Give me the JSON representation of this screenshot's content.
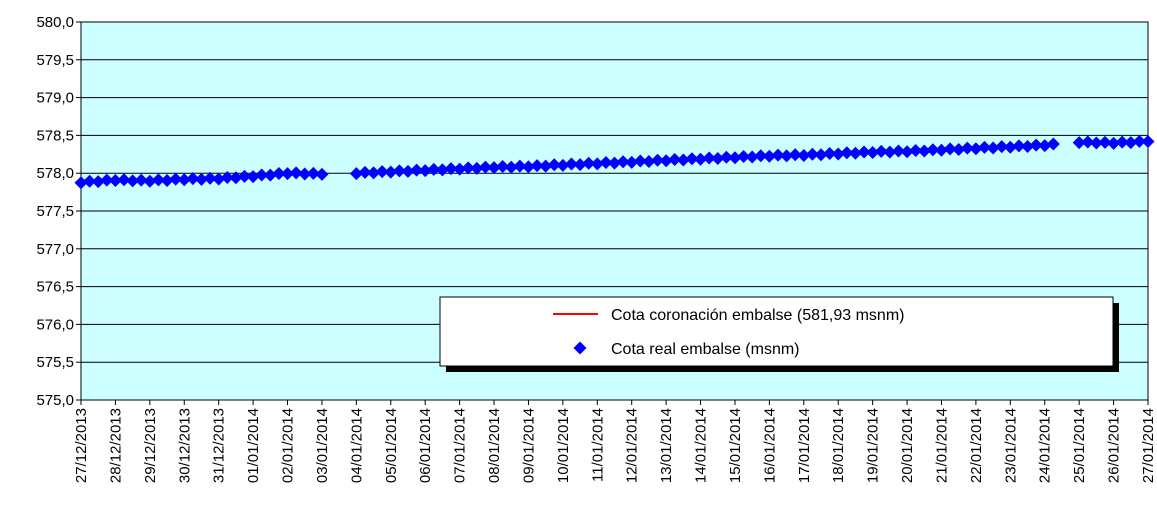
{
  "chart_data": {
    "type": "scatter",
    "title": "",
    "xlabel": "",
    "ylabel": "",
    "ylim": [
      575.0,
      580.0
    ],
    "y_ticks": [
      "580,0",
      "579,5",
      "579,0",
      "578,5",
      "578,0",
      "577,5",
      "577,0",
      "576,5",
      "576,0",
      "575,5",
      "575,0"
    ],
    "x_ticks": [
      "27/12/2013",
      "28/12/2013",
      "29/12/2013",
      "30/12/2013",
      "31/12/2013",
      "01/01/2014",
      "02/01/2014",
      "03/01/2014",
      "04/01/2014",
      "05/01/2014",
      "06/01/2014",
      "07/01/2014",
      "08/01/2014",
      "09/01/2014",
      "10/01/2014",
      "11/01/2014",
      "12/01/2014",
      "13/01/2014",
      "14/01/2014",
      "15/01/2014",
      "16/01/2014",
      "17/01/2014",
      "18/01/2014",
      "19/01/2014",
      "20/01/2014",
      "21/01/2014",
      "22/01/2014",
      "23/01/2014",
      "24/01/2014",
      "25/01/2014",
      "26/01/2014",
      "27/01/2014"
    ],
    "xlim": [
      "27/12/2013",
      "27/01/2014"
    ],
    "grid": "horizontal",
    "plot_background": "#ccffff",
    "legend_position": "bottom-right",
    "series": [
      {
        "name": "Cota coronación embalse (581,93 msnm)",
        "kind": "line",
        "color": "#ff0000",
        "constant_value": 581.93
      },
      {
        "name": "Cota real embalse (msnm)",
        "kind": "marker",
        "marker": "diamond",
        "color": "#0000ff",
        "points_per_day": 4,
        "gaps": [
          [
            "03/01/2014 06:00",
            "03/01/2014 18:00"
          ],
          [
            "24/01/2014 12:00",
            "24/01/2014 18:00"
          ]
        ],
        "daily_values": [
          577.88,
          577.91,
          577.9,
          577.92,
          577.93,
          577.96,
          578.0,
          577.99,
          578.0,
          578.02,
          578.04,
          578.06,
          578.08,
          578.09,
          578.11,
          578.13,
          578.15,
          578.17,
          578.19,
          578.21,
          578.23,
          578.24,
          578.26,
          578.28,
          578.29,
          578.31,
          578.33,
          578.35,
          578.37,
          578.41,
          578.4,
          578.42
        ]
      }
    ]
  }
}
